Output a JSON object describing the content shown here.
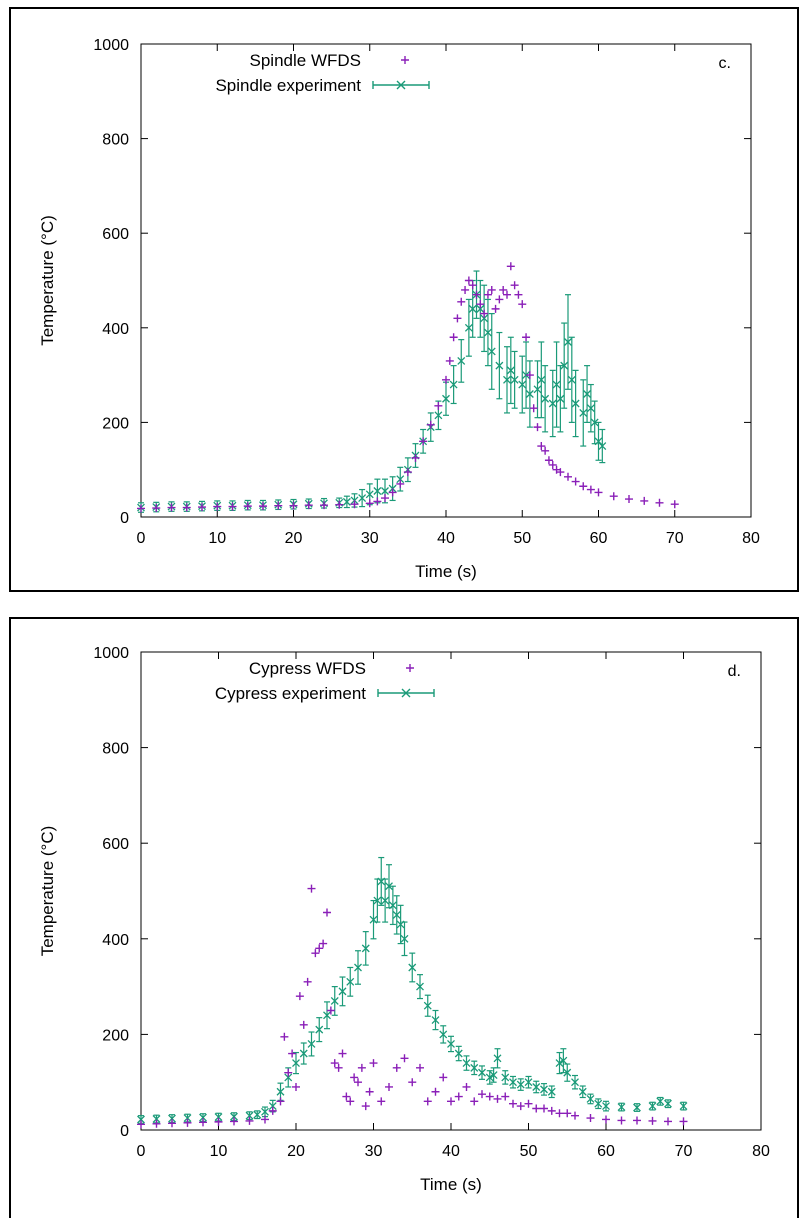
{
  "colors": {
    "wfds": "#8a1fb8",
    "experiment": "#1a9a78",
    "axis": "#000000"
  },
  "chart_data": [
    {
      "type": "scatter",
      "panel_label": "c.",
      "xlabel": "Time (s)",
      "ylabel": "Temperature (°C)",
      "xlim": [
        0,
        80
      ],
      "ylim": [
        0,
        1000
      ],
      "xticks": [
        "0",
        "10",
        "20",
        "30",
        "40",
        "50",
        "60",
        "70",
        "80"
      ],
      "yticks": [
        "0",
        "200",
        "400",
        "600",
        "800",
        "1000"
      ],
      "legend_position": "top-left",
      "grid": false,
      "series": [
        {
          "name": "Spindle WFDS",
          "marker": "plus",
          "x": [
            0,
            2,
            4,
            6,
            8,
            10,
            12,
            14,
            16,
            18,
            20,
            22,
            24,
            26,
            28,
            30,
            31,
            32,
            33,
            34,
            35,
            36,
            37,
            38,
            39,
            40,
            40.5,
            41,
            41.5,
            42,
            42.5,
            43,
            43.5,
            44,
            44.5,
            45,
            45.5,
            46,
            46.5,
            47,
            47.5,
            48,
            48.5,
            49,
            49.5,
            50,
            50.5,
            51,
            51.5,
            52,
            52.5,
            53,
            53.5,
            54,
            54.5,
            55,
            56,
            57,
            58,
            59,
            60,
            62,
            64,
            66,
            68,
            70
          ],
          "y": [
            18,
            19,
            20,
            20,
            21,
            22,
            22,
            23,
            23,
            24,
            24,
            25,
            25,
            26,
            27,
            29,
            33,
            40,
            52,
            70,
            95,
            125,
            160,
            195,
            235,
            290,
            330,
            380,
            420,
            455,
            480,
            500,
            490,
            470,
            450,
            430,
            470,
            480,
            440,
            460,
            480,
            470,
            530,
            490,
            470,
            450,
            380,
            300,
            230,
            190,
            150,
            140,
            120,
            110,
            100,
            95,
            85,
            75,
            65,
            58,
            52,
            44,
            38,
            34,
            30,
            27
          ]
        },
        {
          "name": "Spindle experiment",
          "marker": "cross-errorbar",
          "x": [
            0,
            2,
            4,
            6,
            8,
            10,
            12,
            14,
            16,
            18,
            20,
            22,
            24,
            26,
            27,
            28,
            29,
            30,
            31,
            32,
            33,
            34,
            35,
            36,
            37,
            38,
            39,
            40,
            41,
            42,
            43,
            43.5,
            44,
            44.5,
            45,
            45.5,
            46,
            47,
            48,
            48.5,
            49,
            50,
            50.5,
            51,
            52,
            52.5,
            53,
            54,
            54.5,
            55,
            55.5,
            56,
            56.5,
            57,
            58,
            58.5,
            59,
            59.5,
            60,
            60.5
          ],
          "y": [
            20,
            21,
            22,
            22,
            23,
            24,
            24,
            25,
            25,
            26,
            27,
            28,
            29,
            30,
            32,
            35,
            40,
            48,
            55,
            55,
            60,
            80,
            100,
            130,
            160,
            190,
            215,
            250,
            280,
            330,
            400,
            440,
            470,
            440,
            420,
            390,
            350,
            320,
            290,
            310,
            290,
            280,
            300,
            260,
            270,
            290,
            250,
            240,
            280,
            250,
            320,
            370,
            290,
            240,
            220,
            260,
            230,
            200,
            160,
            150
          ],
          "err": [
            10,
            10,
            10,
            10,
            10,
            10,
            10,
            10,
            10,
            10,
            10,
            10,
            10,
            10,
            12,
            14,
            18,
            22,
            25,
            25,
            25,
            25,
            25,
            25,
            25,
            30,
            30,
            35,
            40,
            45,
            60,
            60,
            50,
            60,
            70,
            70,
            80,
            70,
            70,
            70,
            60,
            60,
            70,
            70,
            60,
            80,
            70,
            70,
            90,
            70,
            90,
            100,
            90,
            70,
            70,
            60,
            50,
            45,
            40,
            35
          ]
        }
      ]
    },
    {
      "type": "scatter",
      "panel_label": "d.",
      "xlabel": "Time (s)",
      "ylabel": "Temperature (°C)",
      "xlim": [
        0,
        80
      ],
      "ylim": [
        0,
        1000
      ],
      "xticks": [
        "0",
        "10",
        "20",
        "30",
        "40",
        "50",
        "60",
        "70",
        "80"
      ],
      "yticks": [
        "0",
        "200",
        "400",
        "600",
        "800",
        "1000"
      ],
      "legend_position": "top-left",
      "grid": false,
      "series": [
        {
          "name": "Cypress WFDS",
          "marker": "plus",
          "x": [
            0,
            2,
            4,
            6,
            8,
            10,
            12,
            14,
            16,
            17,
            18,
            18.5,
            19,
            19.5,
            20,
            20.5,
            21,
            21.5,
            22,
            22.5,
            23,
            23.5,
            24,
            24.5,
            25,
            25.5,
            26,
            26.5,
            27,
            27.5,
            28,
            28.5,
            29,
            29.5,
            30,
            31,
            32,
            33,
            34,
            35,
            36,
            37,
            38,
            39,
            40,
            41,
            42,
            43,
            44,
            45,
            46,
            47,
            48,
            49,
            50,
            51,
            52,
            53,
            54,
            55,
            56,
            58,
            60,
            62,
            64,
            66,
            68,
            70
          ],
          "y": [
            12,
            13,
            14,
            15,
            16,
            17,
            18,
            19,
            22,
            40,
            60,
            195,
            120,
            160,
            90,
            280,
            220,
            310,
            505,
            370,
            380,
            390,
            455,
            250,
            140,
            130,
            160,
            70,
            60,
            110,
            100,
            130,
            50,
            80,
            140,
            60,
            90,
            130,
            150,
            100,
            130,
            60,
            80,
            110,
            60,
            70,
            90,
            60,
            75,
            70,
            65,
            70,
            55,
            50,
            55,
            45,
            45,
            40,
            35,
            35,
            30,
            25,
            22,
            20,
            20,
            19,
            18,
            18
          ]
        },
        {
          "name": "Cypress experiment",
          "marker": "cross-errorbar",
          "x": [
            0,
            2,
            4,
            6,
            8,
            10,
            12,
            14,
            15,
            16,
            17,
            18,
            19,
            20,
            21,
            22,
            23,
            24,
            25,
            26,
            27,
            28,
            29,
            30,
            30.5,
            31,
            31.5,
            32,
            32.5,
            33,
            33.5,
            34,
            35,
            36,
            37,
            38,
            39,
            40,
            41,
            42,
            43,
            44,
            45,
            45.5,
            46,
            47,
            48,
            49,
            50,
            51,
            52,
            53,
            54,
            54.5,
            55,
            56,
            57,
            58,
            59,
            60,
            62,
            64,
            66,
            67,
            68,
            70
          ],
          "y": [
            22,
            23,
            24,
            25,
            26,
            27,
            28,
            30,
            32,
            38,
            50,
            80,
            110,
            140,
            160,
            180,
            210,
            240,
            270,
            290,
            310,
            340,
            380,
            440,
            480,
            520,
            480,
            510,
            470,
            450,
            430,
            400,
            340,
            300,
            260,
            230,
            200,
            180,
            160,
            140,
            130,
            120,
            110,
            115,
            150,
            110,
            100,
            95,
            100,
            90,
            85,
            80,
            140,
            145,
            120,
            100,
            80,
            65,
            55,
            50,
            48,
            47,
            50,
            60,
            55,
            50
          ],
          "err": [
            8,
            8,
            8,
            8,
            8,
            8,
            8,
            8,
            8,
            10,
            12,
            18,
            20,
            22,
            22,
            25,
            25,
            28,
            30,
            30,
            30,
            35,
            35,
            40,
            45,
            50,
            45,
            45,
            40,
            40,
            40,
            35,
            30,
            25,
            22,
            20,
            18,
            16,
            15,
            15,
            14,
            14,
            14,
            15,
            20,
            14,
            12,
            12,
            12,
            12,
            12,
            12,
            22,
            25,
            18,
            14,
            12,
            10,
            10,
            10,
            8,
            8,
            8,
            8,
            8,
            8
          ]
        }
      ]
    }
  ]
}
